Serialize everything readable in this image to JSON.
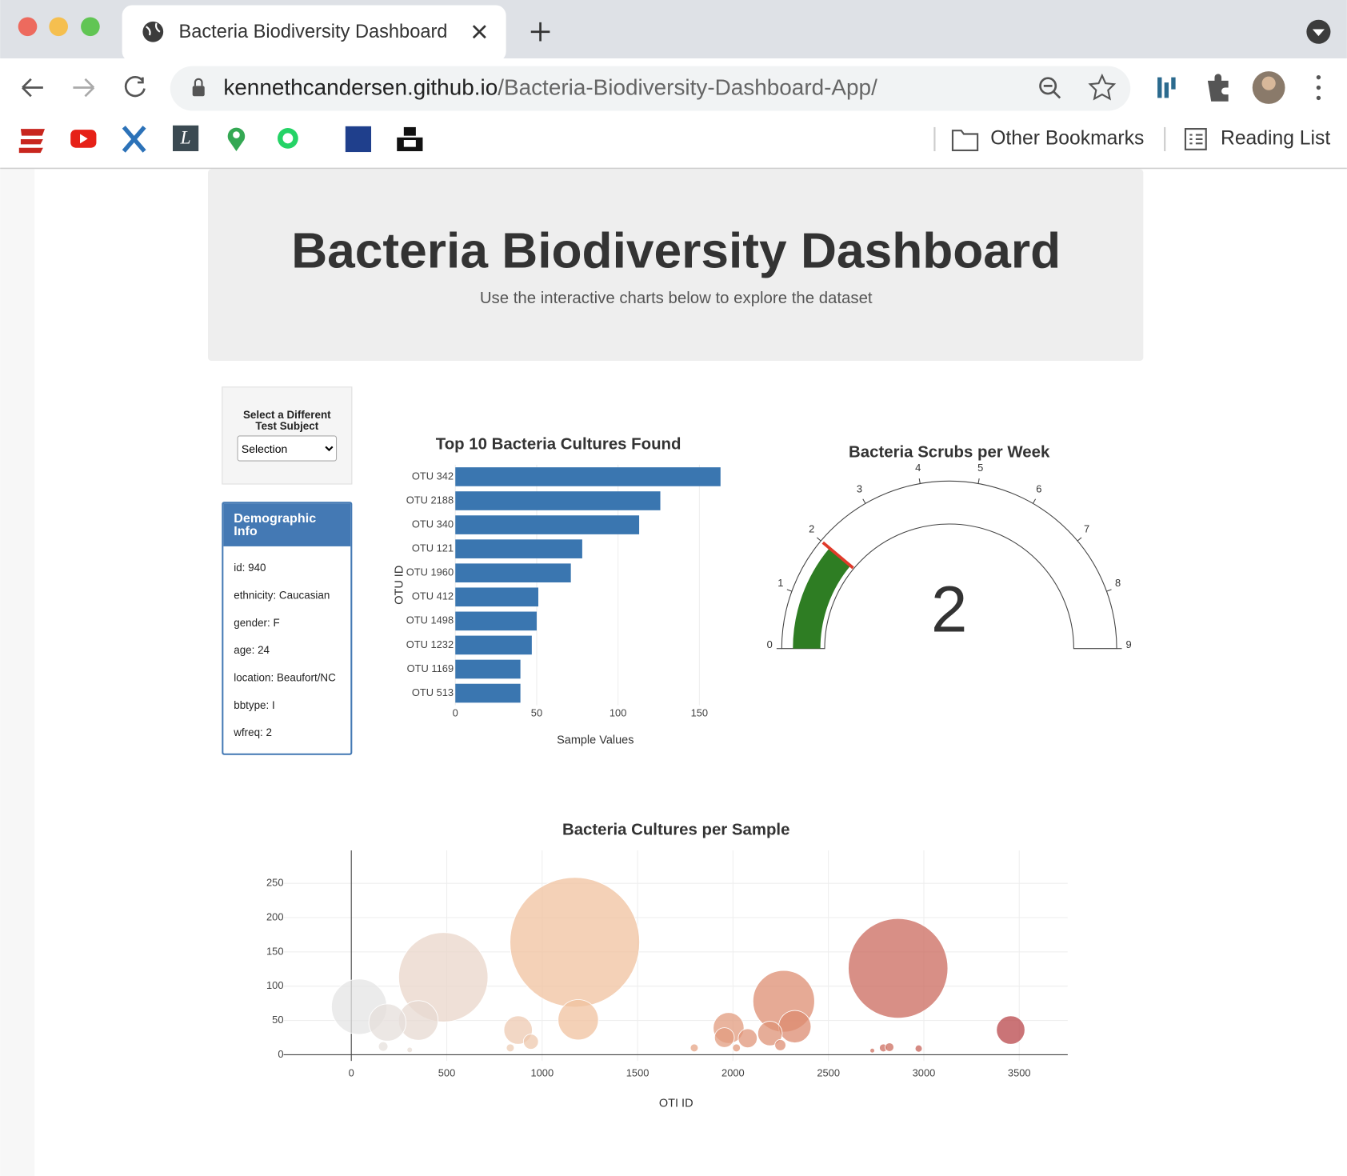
{
  "browser": {
    "tab_title": "Bacteria Biodiversity Dashboard",
    "url_host": "kennethcandersen.github.io",
    "url_path": "/Bacteria-Biodiversity-Dashboard-App/",
    "bookmarks": [
      "Other Bookmarks",
      "Reading List"
    ]
  },
  "header": {
    "title": "Bacteria Biodiversity Dashboard",
    "subtitle": "Use the interactive charts below to explore the dataset"
  },
  "selector": {
    "label": "Select a Different Test Subject",
    "option": "Selection"
  },
  "demographic": {
    "title": "Demographic Info",
    "items": [
      "id: 940",
      "ethnicity: Caucasian",
      "gender: F",
      "age: 24",
      "location: Beaufort/NC",
      "bbtype: I",
      "wfreq: 2"
    ]
  },
  "chart_data": [
    {
      "type": "bar",
      "orientation": "horizontal",
      "title": "Top 10 Bacteria Cultures Found",
      "x_label": "Sample Values",
      "y_label": "OTU ID",
      "categories": [
        "OTU 342",
        "OTU 2188",
        "OTU 340",
        "OTU 121",
        "OTU 1960",
        "OTU 412",
        "OTU 1498",
        "OTU 1232",
        "OTU 1169",
        "OTU 513"
      ],
      "values": [
        163,
        126,
        113,
        78,
        71,
        51,
        50,
        47,
        40,
        40
      ],
      "color": "#3a76b0",
      "xlim": [
        0,
        170
      ],
      "xticks": [
        0,
        50,
        100,
        150
      ],
      "grid": true
    },
    {
      "type": "gauge",
      "title": "Bacteria Scrubs per Week",
      "value": 2,
      "range": [
        0,
        9
      ],
      "ticks": [
        0,
        1,
        2,
        3,
        4,
        5,
        6,
        7,
        8,
        9
      ],
      "bar_color": "#2e7d23",
      "threshold": 2,
      "threshold_color": "#e03a2a"
    },
    {
      "type": "bubble",
      "title": "Bacteria Cultures per Sample",
      "x_label": "OTI ID",
      "x": [
        1171,
        2865,
        482,
        2266,
        41,
        1189,
        351,
        189,
        2324,
        1977,
        3455,
        874,
        2194,
        1955,
        2077,
        941,
        2248,
        167,
        1797,
        833,
        2018,
        2788,
        2820,
        2973,
        306,
        2730
      ],
      "values": [
        164,
        126,
        113,
        78,
        70,
        51,
        50,
        47,
        41,
        39,
        36,
        36,
        31,
        25,
        24,
        19,
        14,
        12,
        10,
        10,
        10,
        10,
        11,
        9,
        7,
        6
      ],
      "colorscale": [
        "#e4e4e4",
        "#f0c19f",
        "#dc8b70",
        "#b8464a"
      ],
      "opacity": 0.75,
      "xlim": [
        -355,
        3754
      ],
      "xticks": [
        0,
        500,
        1000,
        1500,
        2000,
        2500,
        3000,
        3500
      ],
      "ylim": [
        -9,
        298
      ],
      "yticks": [
        0,
        50,
        100,
        150,
        200,
        250
      ],
      "grid": true
    }
  ]
}
